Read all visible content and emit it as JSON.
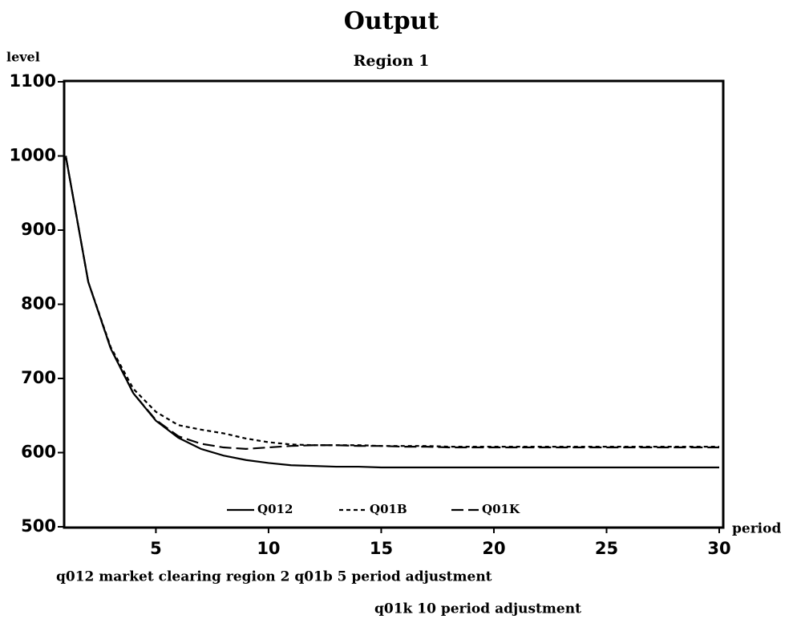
{
  "chart_data": {
    "type": "line",
    "title": "Output",
    "subtitle": "Region 1",
    "y_label": "level",
    "x_label": "period",
    "x": [
      1,
      2,
      3,
      4,
      5,
      6,
      7,
      8,
      9,
      10,
      11,
      12,
      13,
      14,
      15,
      16,
      17,
      18,
      19,
      20,
      21,
      22,
      23,
      24,
      25,
      26,
      27,
      28,
      29,
      30
    ],
    "series": [
      {
        "name": "Q012",
        "color": "#000000",
        "linestyle": "solid",
        "values": [
          1000,
          830,
          740,
          680,
          643,
          620,
          605,
          596,
          590,
          586,
          583,
          582,
          581,
          581,
          580,
          580,
          580,
          580,
          580,
          580,
          580,
          580,
          580,
          580,
          580,
          580,
          580,
          580,
          580,
          580
        ]
      },
      {
        "name": "Q01B",
        "color": "#000000",
        "linestyle": "dashed",
        "values": [
          1000,
          830,
          742,
          686,
          655,
          637,
          631,
          626,
          619,
          614,
          611,
          610,
          610,
          610,
          609,
          609,
          609,
          608,
          608,
          608,
          608,
          608,
          608,
          608,
          608,
          608,
          608,
          608,
          608,
          608
        ]
      },
      {
        "name": "Q01K",
        "color": "#000000",
        "linestyle": "longdash",
        "values": [
          1000,
          830,
          740,
          680,
          644,
          622,
          612,
          607,
          605,
          607,
          609,
          610,
          610,
          609,
          609,
          608,
          608,
          607,
          607,
          607,
          607,
          607,
          607,
          607,
          607,
          607,
          607,
          607,
          607,
          607
        ]
      }
    ],
    "xlim": [
      1,
      30
    ],
    "xticks": [
      5,
      10,
      15,
      20,
      25,
      30
    ],
    "ylim": [
      500,
      1100
    ],
    "yticks": [
      500,
      600,
      700,
      800,
      900,
      1000,
      1100
    ],
    "grid": false,
    "legend": "bottom",
    "annotations": [
      "q012 market clearing region 2  q01b 5 period adjustment",
      "q01k 10 period adjustment"
    ]
  }
}
